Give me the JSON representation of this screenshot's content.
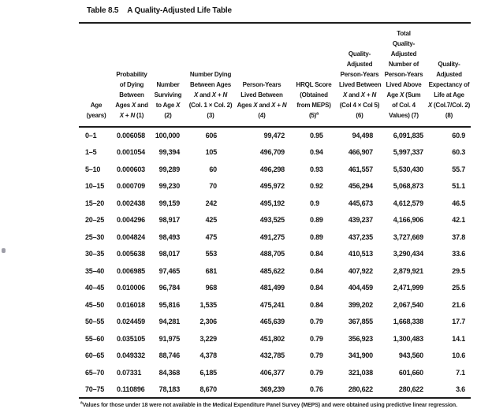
{
  "title": {
    "label": "Table 8.5",
    "caption": "A Quality-Adjusted Life Table"
  },
  "table": {
    "columns": [
      {
        "name": "age",
        "label": "Age\n(years)"
      },
      {
        "name": "probability-of-dying",
        "label": "Probability\nof Dying\nBetween\nAges _X_ and\n_X_ + _N_ (1)"
      },
      {
        "name": "number-surviving",
        "label": "Number\nSurviving\nto Age _X_\n(2)"
      },
      {
        "name": "number-dying",
        "label": "Number Dying\nBetween Ages\n_X_ and _X_ + _N_\n(Col. 1 × Col. 2)\n(3)"
      },
      {
        "name": "person-years-lived",
        "label": "Person-Years\nLived Between\nAges _X_ and _X_ + _N_\n(4)"
      },
      {
        "name": "hrql-score",
        "label": "HRQL Score\n(Obtained\nfrom MEPS)\n(5)^a^"
      },
      {
        "name": "qa-person-years",
        "label": "Quality-\nAdjusted\nPerson-Years\nLived Between\n_X_ and _X_ + _N_\n(Col 4 × Col 5)\n(6)"
      },
      {
        "name": "total-qa-person-years",
        "label": "Total\nQuality-\nAdjusted\nNumber of\nPerson-Years\nLived Above\nAge _X_ (Sum\nof Col. 4\nValues) (7)"
      },
      {
        "name": "qa-life-expectancy",
        "label": "Quality-\nAdjusted\nExpectancy of\nLife at Age\n_X_ (Col.7/Col. 2)\n(8)"
      }
    ],
    "rows": [
      [
        "0–1",
        "0.006058",
        "100,000",
        "606",
        "99,472",
        "0.95",
        "94,498",
        "6,091,835",
        "60.9"
      ],
      [
        "1–5",
        "0.001054",
        "99,394",
        "105",
        "496,709",
        "0.94",
        "466,907",
        "5,997,337",
        "60.3"
      ],
      [
        "5–10",
        "0.000603",
        "99,289",
        "60",
        "496,298",
        "0.93",
        "461,557",
        "5,530,430",
        "55.7"
      ],
      [
        "10–15",
        "0.000709",
        "99,230",
        "70",
        "495,972",
        "0.92",
        "456,294",
        "5,068,873",
        "51.1"
      ],
      [
        "15–20",
        "0.002438",
        "99,159",
        "242",
        "495,192",
        "0.9",
        "445,673",
        "4,612,579",
        "46.5"
      ],
      [
        "20–25",
        "0.004296",
        "98,917",
        "425",
        "493,525",
        "0.89",
        "439,237",
        "4,166,906",
        "42.1"
      ],
      [
        "25–30",
        "0.004824",
        "98,493",
        "475",
        "491,275",
        "0.89",
        "437,235",
        "3,727,669",
        "37.8"
      ],
      [
        "30–35",
        "0.005638",
        "98,017",
        "553",
        "488,705",
        "0.84",
        "410,513",
        "3,290,434",
        "33.6"
      ],
      [
        "35–40",
        "0.006985",
        "97,465",
        "681",
        "485,622",
        "0.84",
        "407,922",
        "2,879,921",
        "29.5"
      ],
      [
        "40–45",
        "0.010006",
        "96,784",
        "968",
        "481,499",
        "0.84",
        "404,459",
        "2,471,999",
        "25.5"
      ],
      [
        "45–50",
        "0.016018",
        "95,816",
        "1,535",
        "475,241",
        "0.84",
        "399,202",
        "2,067,540",
        "21.6"
      ],
      [
        "50–55",
        "0.024459",
        "94,281",
        "2,306",
        "465,639",
        "0.79",
        "367,855",
        "1,668,338",
        "17.7"
      ],
      [
        "55–60",
        "0.035105",
        "91,975",
        "3,229",
        "451,802",
        "0.79",
        "356,923",
        "1,300,483",
        "14.1"
      ],
      [
        "60–65",
        "0.049332",
        "88,746",
        "4,378",
        "432,785",
        "0.79",
        "341,900",
        "943,560",
        "10.6"
      ],
      [
        "65–70",
        "0.07331",
        "84,368",
        "6,185",
        "406,377",
        "0.79",
        "321,038",
        "601,660",
        "7.1"
      ],
      [
        "70–75",
        "0.110896",
        "78,183",
        "8,670",
        "369,239",
        "0.76",
        "280,622",
        "280,622",
        "3.6"
      ]
    ]
  },
  "footnote": {
    "marker": "a",
    "text": "Values for those under 18 were not available in the Medical Expenditure Panel Survey (MEPS) and were obtained using predictive linear regression."
  }
}
